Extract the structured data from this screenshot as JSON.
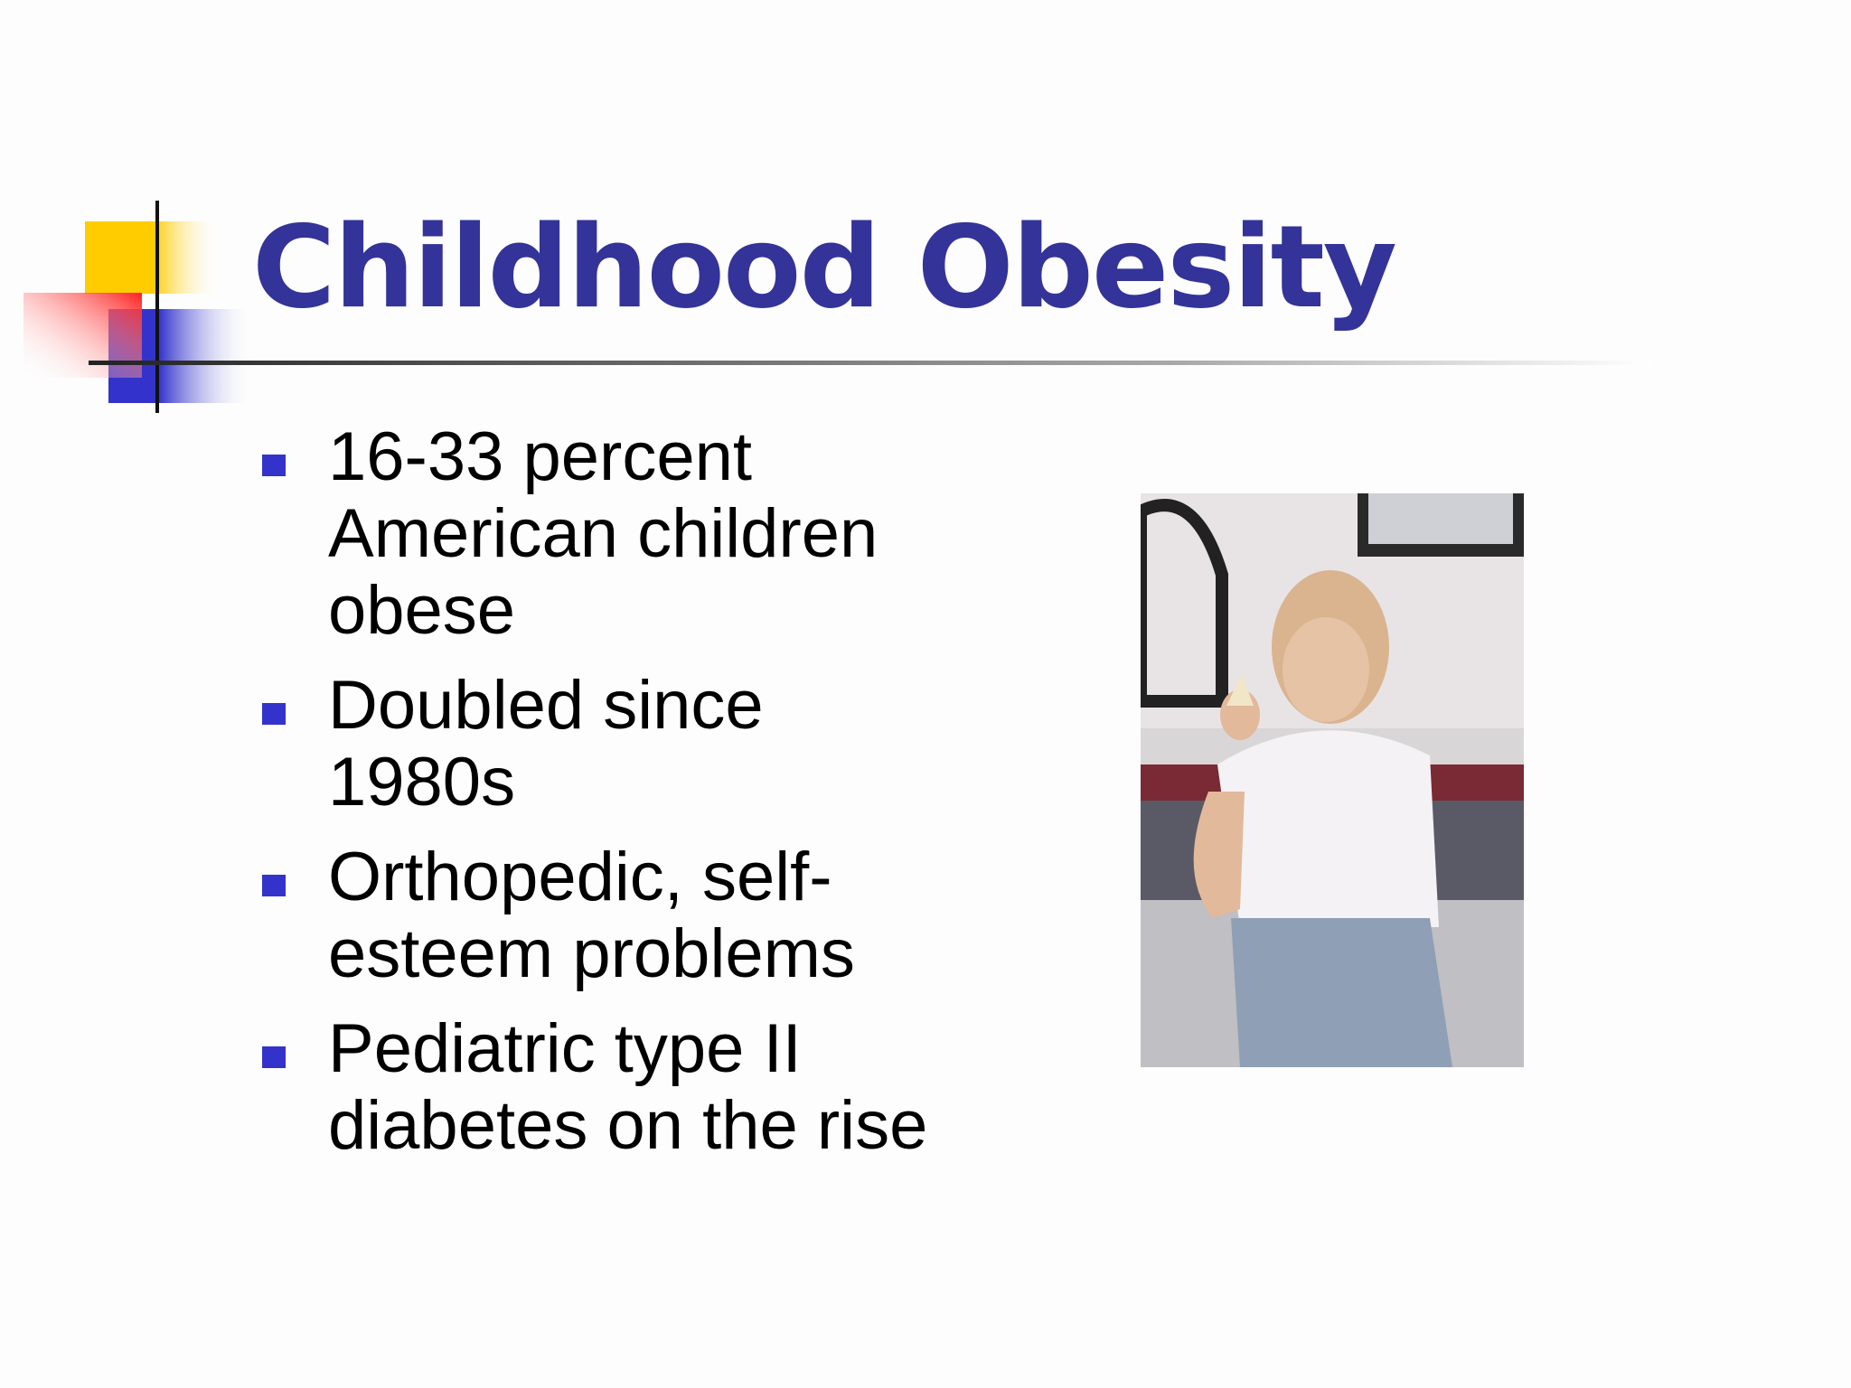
{
  "slide": {
    "title": "Childhood Obesity",
    "bullets": [
      "16-33 percent American children obese",
      "Doubled since 1980s",
      "Orthopedic, self-esteem problems",
      "Pediatric type II diabetes on the rise"
    ]
  }
}
